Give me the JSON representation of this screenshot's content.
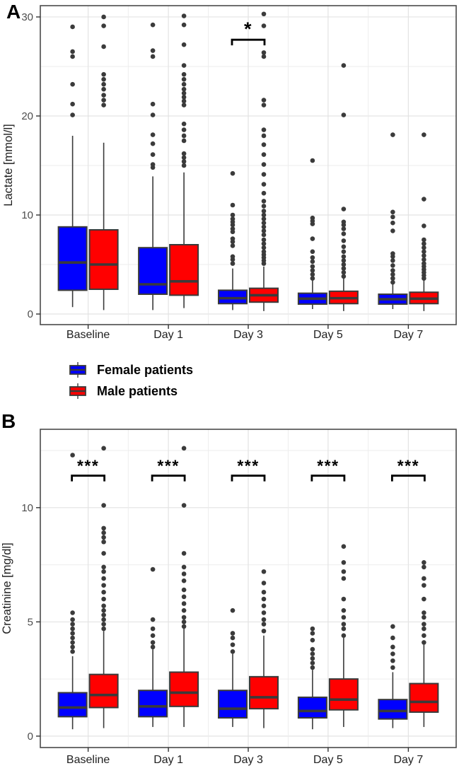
{
  "colors": {
    "female": "#0000FF",
    "male": "#FF0000",
    "box_border": "#3A3A3A",
    "outlier_dot": "#3B3B3B",
    "grid_major": "#E3E3E3",
    "grid_minor": "#EDEDED",
    "panel_border": "#4A4A4A",
    "tick_text": "#4D4D4D",
    "category_text": "#1F1F1F",
    "axis_title_text": "#202020",
    "significance": "#000000"
  },
  "legend": {
    "items": [
      {
        "label": "Female patients",
        "color": "#0000FF",
        "icon": "boxplot-key-icon"
      },
      {
        "label": "Male patients",
        "color": "#FF0000",
        "icon": "boxplot-key-icon"
      }
    ]
  },
  "chart_data": [
    {
      "type": "boxplot",
      "panel_label": "A",
      "ylabel": "Lactate [mmol/l]",
      "ylim": [
        -1.07,
        31.14
      ],
      "yticks": [
        0,
        10,
        20,
        30
      ],
      "yticks_minor": [
        5,
        15,
        25
      ],
      "grid": true,
      "legend_position": "below",
      "categories": [
        "Baseline",
        "Day 1",
        "Day 3",
        "Day 5",
        "Day 7"
      ],
      "series": [
        {
          "name": "Female patients",
          "color": "#0000FF",
          "boxes": [
            {
              "whislo": 0.7,
              "q1": 2.4,
              "med": 5.2,
              "q3": 8.8,
              "whishi": 18.0,
              "outliers": [
                20.1,
                21.2,
                23.2,
                26.0,
                26.5,
                29.0
              ]
            },
            {
              "whislo": 0.4,
              "q1": 2.0,
              "med": 3.0,
              "q3": 6.7,
              "whishi": 13.9,
              "outliers": [
                14.8,
                15.1,
                16.1,
                17.2,
                18.1,
                20.1,
                21.2,
                26.0,
                26.6,
                29.2
              ]
            },
            {
              "whislo": 0.4,
              "q1": 1.05,
              "med": 1.6,
              "q3": 2.4,
              "whishi": 4.6,
              "outliers": [
                5.1,
                5.5,
                5.8,
                6.9,
                7.3,
                7.6,
                8.3,
                8.6,
                9.0,
                9.3,
                9.6,
                10.0,
                11.0,
                14.2
              ]
            },
            {
              "whislo": 0.5,
              "q1": 1.0,
              "med": 1.55,
              "q3": 2.1,
              "whishi": 3.4,
              "outliers": [
                3.6,
                4.0,
                4.4,
                4.8,
                5.3,
                5.7,
                6.3,
                7.6,
                9.1,
                9.4,
                9.7,
                15.5
              ]
            },
            {
              "whislo": 0.5,
              "q1": 1.0,
              "med": 1.5,
              "q3": 2.0,
              "whishi": 3.0,
              "outliers": [
                3.2,
                3.6,
                4.0,
                4.4,
                4.9,
                5.4,
                5.8,
                6.1,
                8.4,
                9.2,
                9.8,
                10.3,
                18.1
              ]
            }
          ]
        },
        {
          "name": "Male patients",
          "color": "#FF0000",
          "boxes": [
            {
              "whislo": 0.4,
              "q1": 2.5,
              "med": 5.0,
              "q3": 8.5,
              "whishi": 17.3,
              "outliers": [
                21.1,
                21.6,
                22.1,
                22.7,
                23.2,
                23.7,
                24.2,
                27.0,
                29.1,
                30.0
              ]
            },
            {
              "whislo": 0.6,
              "q1": 1.9,
              "med": 3.3,
              "q3": 7.0,
              "whishi": 14.3,
              "outliers": [
                15.0,
                15.4,
                15.8,
                16.2,
                17.5,
                18.0,
                18.6,
                19.2,
                21.1,
                21.5,
                21.9,
                22.3,
                22.7,
                23.2,
                23.7,
                24.2,
                25.1,
                27.2,
                29.2,
                30.1
              ]
            },
            {
              "whislo": 0.3,
              "q1": 1.2,
              "med": 1.9,
              "q3": 2.6,
              "whishi": 4.8,
              "outliers": [
                5.1,
                5.4,
                5.7,
                6.0,
                6.3,
                6.7,
                7.1,
                7.5,
                8.0,
                8.4,
                8.8,
                9.2,
                9.6,
                10.0,
                10.4,
                10.9,
                11.4,
                12.2,
                13.1,
                14.1,
                15.1,
                16.1,
                17.1,
                18.0,
                18.6,
                21.1,
                21.6,
                26.0,
                26.4,
                29.1,
                30.3
              ]
            },
            {
              "whislo": 0.3,
              "q1": 1.05,
              "med": 1.6,
              "q3": 2.3,
              "whishi": 3.7,
              "outliers": [
                3.8,
                4.2,
                4.6,
                5.0,
                5.4,
                5.8,
                6.3,
                6.8,
                7.4,
                8.1,
                8.6,
                9.0,
                9.3,
                10.6,
                20.1,
                25.1
              ]
            },
            {
              "whislo": 0.3,
              "q1": 1.05,
              "med": 1.55,
              "q3": 2.2,
              "whishi": 3.4,
              "outliers": [
                3.6,
                3.9,
                4.2,
                4.5,
                4.8,
                5.1,
                5.5,
                5.9,
                6.3,
                6.7,
                7.1,
                7.5,
                8.9,
                11.6,
                18.1
              ]
            }
          ]
        }
      ],
      "significance": [
        {
          "category": "Day 3",
          "label": "*",
          "y": 27.7
        }
      ]
    },
    {
      "type": "boxplot",
      "panel_label": "B",
      "ylabel": "Creatinine [mg/dl]",
      "ylim": [
        -0.5,
        13.43
      ],
      "yticks": [
        0,
        5,
        10
      ],
      "yticks_minor": [
        2.5,
        7.5,
        12.5
      ],
      "grid": true,
      "legend_position": "none",
      "categories": [
        "Baseline",
        "Day 1",
        "Day 3",
        "Day 5",
        "Day 7"
      ],
      "series": [
        {
          "name": "Female patients",
          "color": "#0000FF",
          "boxes": [
            {
              "whislo": 0.3,
              "q1": 0.85,
              "med": 1.25,
              "q3": 1.9,
              "whishi": 3.5,
              "outliers": [
                3.7,
                3.9,
                4.1,
                4.3,
                4.5,
                4.7,
                4.9,
                5.1,
                5.4,
                12.3
              ]
            },
            {
              "whislo": 0.4,
              "q1": 0.85,
              "med": 1.3,
              "q3": 2.0,
              "whishi": 3.8,
              "outliers": [
                3.9,
                4.1,
                4.4,
                4.7,
                5.1,
                7.3
              ]
            },
            {
              "whislo": 0.4,
              "q1": 0.8,
              "med": 1.2,
              "q3": 2.0,
              "whishi": 3.6,
              "outliers": [
                3.7,
                4.0,
                4.3,
                4.5,
                5.5
              ]
            },
            {
              "whislo": 0.3,
              "q1": 0.8,
              "med": 1.1,
              "q3": 1.7,
              "whishi": 2.9,
              "outliers": [
                3.0,
                3.2,
                3.4,
                3.6,
                3.8,
                4.2,
                4.5,
                4.7
              ]
            },
            {
              "whislo": 0.35,
              "q1": 0.75,
              "med": 1.1,
              "q3": 1.6,
              "whishi": 2.8,
              "outliers": [
                3.0,
                3.3,
                3.6,
                3.9,
                4.3,
                4.8
              ]
            }
          ]
        },
        {
          "name": "Male patients",
          "color": "#FF0000",
          "boxes": [
            {
              "whislo": 0.35,
              "q1": 1.25,
              "med": 1.8,
              "q3": 2.7,
              "whishi": 4.6,
              "outliers": [
                4.7,
                4.9,
                5.1,
                5.3,
                5.5,
                5.7,
                6.0,
                6.3,
                6.6,
                6.9,
                7.2,
                7.4,
                8.0,
                8.5,
                8.7,
                8.9,
                9.1,
                10.1,
                12.6
              ]
            },
            {
              "whislo": 0.4,
              "q1": 1.3,
              "med": 1.9,
              "q3": 2.8,
              "whishi": 4.7,
              "outliers": [
                4.8,
                5.0,
                5.2,
                5.5,
                5.8,
                6.1,
                6.4,
                6.8,
                7.1,
                7.4,
                8.0,
                10.1,
                12.6
              ]
            },
            {
              "whislo": 0.35,
              "q1": 1.2,
              "med": 1.7,
              "q3": 2.6,
              "whishi": 4.4,
              "outliers": [
                4.6,
                4.9,
                5.1,
                5.4,
                5.7,
                6.0,
                6.3,
                6.7,
                7.2
              ]
            },
            {
              "whislo": 0.4,
              "q1": 1.15,
              "med": 1.6,
              "q3": 2.5,
              "whishi": 4.3,
              "outliers": [
                4.4,
                4.7,
                4.9,
                5.2,
                5.5,
                6.0,
                6.9,
                7.2,
                7.6,
                8.3
              ]
            },
            {
              "whislo": 0.4,
              "q1": 1.05,
              "med": 1.5,
              "q3": 2.3,
              "whishi": 4.0,
              "outliers": [
                4.1,
                4.4,
                4.7,
                4.9,
                5.2,
                5.4,
                6.0,
                6.6,
                6.9,
                7.4,
                7.6
              ]
            }
          ]
        }
      ],
      "significance": [
        {
          "category": "Baseline",
          "label": "***",
          "y": 11.4
        },
        {
          "category": "Day 1",
          "label": "***",
          "y": 11.4
        },
        {
          "category": "Day 3",
          "label": "***",
          "y": 11.4
        },
        {
          "category": "Day 5",
          "label": "***",
          "y": 11.4
        },
        {
          "category": "Day 7",
          "label": "***",
          "y": 11.4
        }
      ]
    }
  ]
}
